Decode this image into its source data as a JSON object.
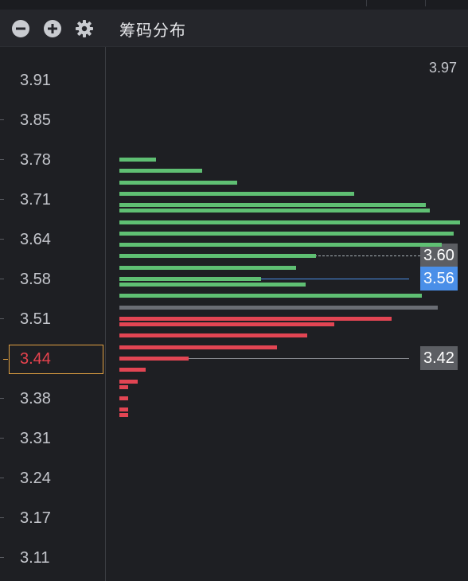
{
  "toolbar": {
    "title": "筹码分布",
    "collapse_icon": "minus-circle-icon",
    "expand_icon": "plus-circle-icon",
    "settings_icon": "gear-icon"
  },
  "price_axis": {
    "ticks": [
      "3.91",
      "3.85",
      "3.78",
      "3.71",
      "3.64",
      "3.58",
      "3.51",
      "3.38",
      "3.31",
      "3.24",
      "3.17",
      "3.11"
    ],
    "current_price": "3.44"
  },
  "colors": {
    "profit": "#5fbf73",
    "loss": "#e24553",
    "average": "#6a6d74",
    "current_tag": "#4a8fe8",
    "neutral_tag": "#5c5e63",
    "current_box": "#e0a042"
  },
  "chart_data": {
    "type": "bar",
    "orientation": "horizontal",
    "max_price_label": "3.97",
    "tags": {
      "upper": "3.60",
      "current": "3.56",
      "lower": "3.42"
    },
    "bars": [
      {
        "price": 3.77,
        "value": 46,
        "color": "profit"
      },
      {
        "price": 3.75,
        "value": 104,
        "color": "profit"
      },
      {
        "price": 3.73,
        "value": 148,
        "color": "profit"
      },
      {
        "price": 3.71,
        "value": 295,
        "color": "profit"
      },
      {
        "price": 3.69,
        "value": 385,
        "color": "profit"
      },
      {
        "price": 3.68,
        "value": 390,
        "color": "profit"
      },
      {
        "price": 3.66,
        "value": 428,
        "color": "profit"
      },
      {
        "price": 3.64,
        "value": 420,
        "color": "profit"
      },
      {
        "price": 3.62,
        "value": 405,
        "color": "profit"
      },
      {
        "price": 3.6,
        "value": 247,
        "color": "profit"
      },
      {
        "price": 3.58,
        "value": 222,
        "color": "profit"
      },
      {
        "price": 3.56,
        "value": 178,
        "color": "profit"
      },
      {
        "price": 3.55,
        "value": 234,
        "color": "profit"
      },
      {
        "price": 3.53,
        "value": 380,
        "color": "profit"
      },
      {
        "price": 3.51,
        "value": 400,
        "color": "average"
      },
      {
        "price": 3.49,
        "value": 342,
        "color": "loss"
      },
      {
        "price": 3.48,
        "value": 270,
        "color": "loss"
      },
      {
        "price": 3.46,
        "value": 236,
        "color": "loss"
      },
      {
        "price": 3.44,
        "value": 198,
        "color": "loss"
      },
      {
        "price": 3.42,
        "value": 87,
        "color": "loss"
      },
      {
        "price": 3.4,
        "value": 33,
        "color": "loss"
      },
      {
        "price": 3.38,
        "value": 23,
        "color": "loss"
      },
      {
        "price": 3.37,
        "value": 11,
        "color": "loss"
      },
      {
        "price": 3.35,
        "value": 11,
        "color": "loss"
      },
      {
        "price": 3.33,
        "value": 11,
        "color": "loss"
      },
      {
        "price": 3.32,
        "value": 11,
        "color": "loss"
      }
    ]
  }
}
